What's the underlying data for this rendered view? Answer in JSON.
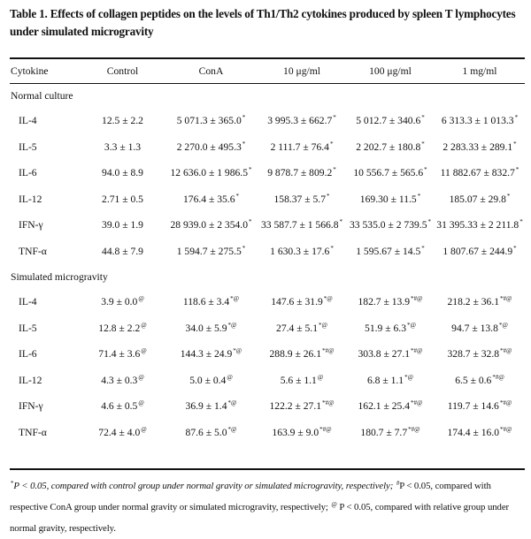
{
  "table": {
    "caption": "Table 1.  Effects of collagen peptides on the levels of Th1/Th2 cytokines produced by spleen T lymphocytes under simulated microgravity",
    "columns": [
      "Cytokine",
      "Control",
      "ConA",
      "10 μg/ml",
      "100 μg/ml",
      "1 mg/ml"
    ],
    "sections": [
      {
        "label": "Normal culture",
        "rows": [
          {
            "cytokine": "IL-4",
            "cells": [
              {
                "v": "12.5 ± 2.2",
                "s": ""
              },
              {
                "v": "5 071.3 ± 365.0",
                "s": "*"
              },
              {
                "v": "3 995.3 ± 662.7",
                "s": "*"
              },
              {
                "v": "5 012.7 ± 340.6",
                "s": "*"
              },
              {
                "v": "6 313.3 ± 1 013.3",
                "s": "*"
              }
            ]
          },
          {
            "cytokine": "IL-5",
            "cells": [
              {
                "v": "3.3 ± 1.3",
                "s": ""
              },
              {
                "v": "2 270.0 ± 495.3",
                "s": "*"
              },
              {
                "v": "2 111.7 ± 76.4",
                "s": "*"
              },
              {
                "v": "2 202.7 ± 180.8",
                "s": "*"
              },
              {
                "v": "2 283.33 ± 289.1",
                "s": "*"
              }
            ]
          },
          {
            "cytokine": "IL-6",
            "cells": [
              {
                "v": "94.0 ± 8.9",
                "s": ""
              },
              {
                "v": "12 636.0 ± 1 986.5",
                "s": "*"
              },
              {
                "v": "9 878.7 ± 809.2",
                "s": "*"
              },
              {
                "v": "10 556.7 ± 565.6",
                "s": "*"
              },
              {
                "v": "11 882.67 ± 832.7",
                "s": "*"
              }
            ]
          },
          {
            "cytokine": "IL-12",
            "cells": [
              {
                "v": "2.71 ± 0.5",
                "s": ""
              },
              {
                "v": "176.4 ± 35.6",
                "s": "*"
              },
              {
                "v": "158.37 ± 5.7",
                "s": "*"
              },
              {
                "v": "169.30 ± 11.5",
                "s": "*"
              },
              {
                "v": "185.07 ± 29.8",
                "s": "*"
              }
            ]
          },
          {
            "cytokine": "IFN-γ",
            "cells": [
              {
                "v": "39.0 ± 1.9",
                "s": ""
              },
              {
                "v": "28 939.0 ± 2 354.0",
                "s": "*"
              },
              {
                "v": "33 587.7 ± 1 566.8",
                "s": "*"
              },
              {
                "v": "33 535.0 ± 2 739.5",
                "s": "*"
              },
              {
                "v": "31 395.33 ± 2 211.8",
                "s": "*"
              }
            ]
          },
          {
            "cytokine": "TNF-α",
            "cells": [
              {
                "v": "44.8 ± 7.9",
                "s": ""
              },
              {
                "v": "1 594.7 ± 275.5",
                "s": "*"
              },
              {
                "v": "1 630.3 ± 17.6",
                "s": "*"
              },
              {
                "v": "1 595.67 ± 14.5",
                "s": "*"
              },
              {
                "v": "1 807.67 ± 244.9",
                "s": "*"
              }
            ]
          }
        ]
      },
      {
        "label": "Simulated microgravity",
        "rows": [
          {
            "cytokine": "IL-4",
            "cells": [
              {
                "v": "3.9 ± 0.0",
                "s": "@"
              },
              {
                "v": "118.6 ± 3.4",
                "s": "*@"
              },
              {
                "v": "147.6 ± 31.9",
                "s": "*@"
              },
              {
                "v": "182.7 ± 13.9",
                "s": "*#@"
              },
              {
                "v": "218.2 ± 36.1",
                "s": "*#@"
              }
            ]
          },
          {
            "cytokine": "IL-5",
            "cells": [
              {
                "v": "12.8 ± 2.2",
                "s": "@"
              },
              {
                "v": "34.0 ± 5.9",
                "s": "*@"
              },
              {
                "v": "27.4 ± 5.1",
                "s": "*@"
              },
              {
                "v": "51.9 ± 6.3",
                "s": "*@"
              },
              {
                "v": "94.7 ± 13.8",
                "s": "*@"
              }
            ]
          },
          {
            "cytokine": "IL-6",
            "cells": [
              {
                "v": "71.4 ± 3.6",
                "s": "@"
              },
              {
                "v": "144.3 ± 24.9",
                "s": "*@"
              },
              {
                "v": "288.9 ± 26.1",
                "s": "*#@"
              },
              {
                "v": "303.8 ± 27.1",
                "s": "*#@"
              },
              {
                "v": "328.7 ± 32.8",
                "s": "*#@"
              }
            ]
          },
          {
            "cytokine": "IL-12",
            "cells": [
              {
                "v": "4.3 ± 0.3",
                "s": "@"
              },
              {
                "v": "5.0 ± 0.4",
                "s": "@"
              },
              {
                "v": "5.6 ± 1.1",
                "s": "@"
              },
              {
                "v": "6.8 ± 1.1",
                "s": "*@"
              },
              {
                "v": "6.5 ± 0.6",
                "s": "*#@"
              }
            ]
          },
          {
            "cytokine": "IFN-γ",
            "cells": [
              {
                "v": "4.6 ± 0.5",
                "s": "@"
              },
              {
                "v": "36.9 ± 1.4",
                "s": "*@"
              },
              {
                "v": "122.2 ± 27.1",
                "s": "*#@"
              },
              {
                "v": "162.1 ± 25.4",
                "s": "*#@"
              },
              {
                "v": "119.7 ± 14.6",
                "s": "*#@"
              }
            ]
          },
          {
            "cytokine": "TNF-α",
            "cells": [
              {
                "v": "72.4 ± 4.0",
                "s": "@"
              },
              {
                "v": "87.6 ± 5.0",
                "s": "*@"
              },
              {
                "v": "163.9 ± 9.0",
                "s": "*#@"
              },
              {
                "v": "180.7 ± 7.7",
                "s": "*#@"
              },
              {
                "v": "174.4 ± 16.0",
                "s": "*#@"
              }
            ]
          }
        ]
      }
    ],
    "footnote": {
      "marker1": "*",
      "text1": "P < 0.05, compared with control group under normal gravity or simulated microgravity, respectively; ",
      "marker2": "#",
      "text2": "P < 0.05, compared with respective ConA group under normal gravity or simulated microgravity, respectively; ",
      "marker3": "@",
      "text3": " P < 0.05, compared with relative group under normal gravity, respectively."
    }
  }
}
